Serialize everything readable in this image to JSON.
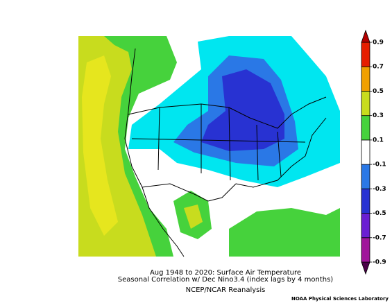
{
  "map": {
    "colorbar": {
      "ticks": [
        -0.9,
        -0.7,
        -0.5,
        -0.3,
        -0.1,
        0.1,
        0.3,
        0.5,
        0.7,
        0.9
      ],
      "colors": [
        "#4a0048",
        "#a0149b",
        "#6a1ed2",
        "#2832d2",
        "#2a78e6",
        "#00e6f0",
        "#ffffff",
        "#46d23c",
        "#c8dc1e",
        "#f0a000",
        "#e61e00",
        "#b40000"
      ]
    }
  },
  "caption": {
    "line1": "Aug 1948 to 2020: Surface Air Temperature",
    "line2": "Seasonal Correlation w/ Dec Nino3.4 (index lags by 4 months)",
    "line3": "NCEP/NCAR Reanalysis",
    "credit": "NOAA Physical Sciences Laboratory"
  }
}
